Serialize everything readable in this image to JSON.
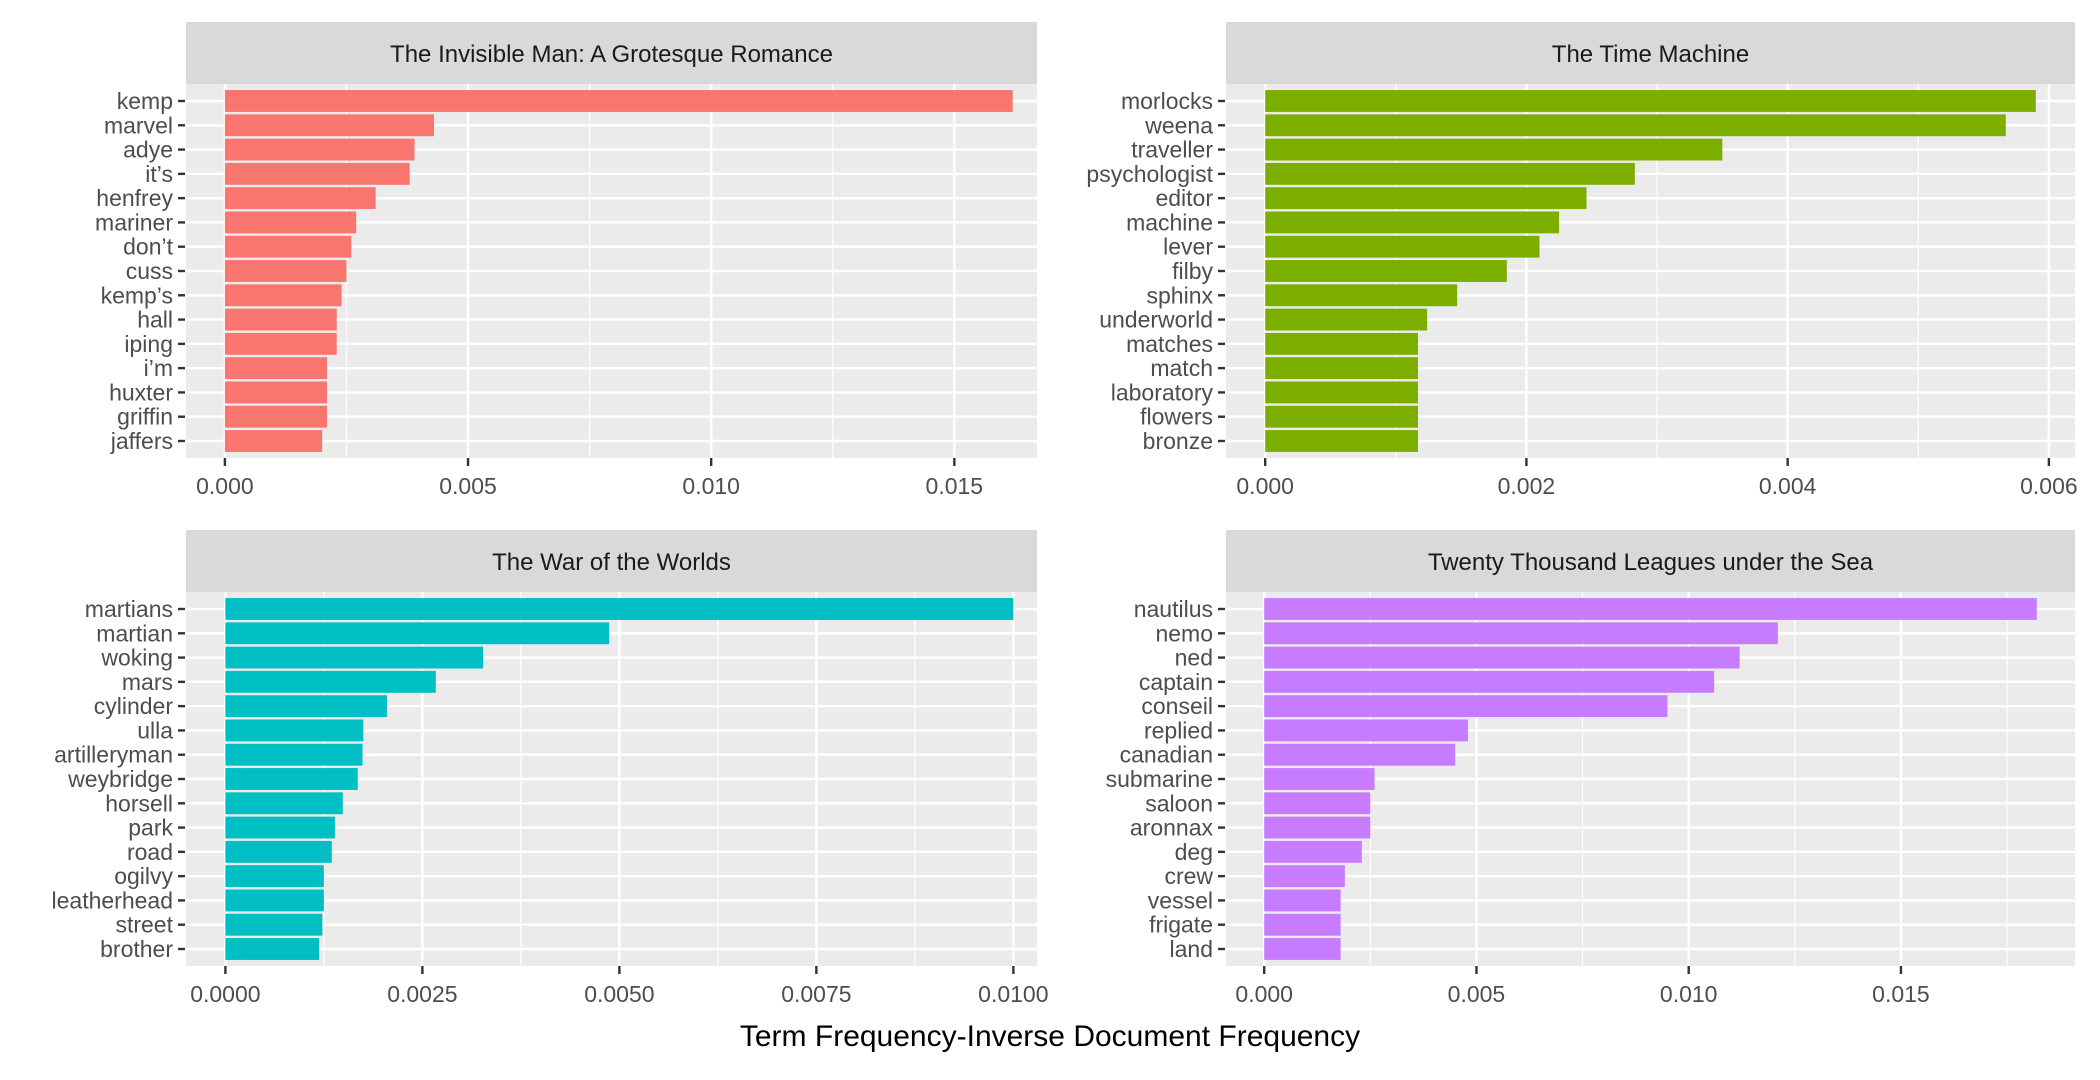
{
  "figure": {
    "xlabel": "Term Frequency-Inverse Document Frequency"
  },
  "chart_data": [
    {
      "type": "bar",
      "orientation": "horizontal",
      "title": "The Invisible Man: A Grotesque Romance",
      "color": "#F8766D",
      "xlim": [
        -0.0008,
        0.0167
      ],
      "ticks": [
        0,
        0.005,
        0.01,
        0.015
      ],
      "tick_labels": [
        "0.000",
        "0.005",
        "0.010",
        "0.015"
      ],
      "categories": [
        "kemp",
        "marvel",
        "adye",
        "it’s",
        "henfrey",
        "mariner",
        "don’t",
        "cuss",
        "kemp’s",
        "hall",
        "iping",
        "i’m",
        "huxter",
        "griffin",
        "jaffers"
      ],
      "values": [
        0.0162,
        0.0043,
        0.0039,
        0.0038,
        0.0031,
        0.0027,
        0.0026,
        0.0025,
        0.0024,
        0.0023,
        0.0023,
        0.0021,
        0.0021,
        0.0021,
        0.002
      ]
    },
    {
      "type": "bar",
      "orientation": "horizontal",
      "title": "The Time Machine",
      "color": "#7CAE00",
      "xlim": [
        -0.0003,
        0.0062
      ],
      "ticks": [
        0,
        0.002,
        0.004,
        0.006
      ],
      "tick_labels": [
        "0.000",
        "0.002",
        "0.004",
        "0.006"
      ],
      "categories": [
        "morlocks",
        "weena",
        "traveller",
        "psychologist",
        "editor",
        "machine",
        "lever",
        "filby",
        "sphinx",
        "underworld",
        "matches",
        "match",
        "laboratory",
        "flowers",
        "bronze"
      ],
      "values": [
        0.0059,
        0.00567,
        0.0035,
        0.00283,
        0.00246,
        0.00225,
        0.0021,
        0.00185,
        0.00147,
        0.00124,
        0.00117,
        0.00117,
        0.00117,
        0.00117,
        0.00117
      ]
    },
    {
      "type": "bar",
      "orientation": "horizontal",
      "title": "The War of the Worlds",
      "color": "#00BFC4",
      "xlim": [
        -0.0005,
        0.0103
      ],
      "ticks": [
        0,
        0.0025,
        0.005,
        0.0075,
        0.01
      ],
      "tick_labels": [
        "0.0000",
        "0.0025",
        "0.0050",
        "0.0075",
        "0.0100"
      ],
      "categories": [
        "martians",
        "martian",
        "woking",
        "mars",
        "cylinder",
        "ulla",
        "artilleryman",
        "weybridge",
        "horsell",
        "park",
        "road",
        "ogilvy",
        "leatherhead",
        "street",
        "brother"
      ],
      "values": [
        0.01,
        0.00487,
        0.00327,
        0.00267,
        0.00205,
        0.00175,
        0.00174,
        0.00168,
        0.00149,
        0.00139,
        0.00135,
        0.00125,
        0.00125,
        0.00123,
        0.00119
      ]
    },
    {
      "type": "bar",
      "orientation": "horizontal",
      "title": "Twenty Thousand Leagues under the Sea",
      "color": "#C77CFF",
      "xlim": [
        -0.0009,
        0.0191
      ],
      "ticks": [
        0,
        0.005,
        0.01,
        0.015
      ],
      "tick_labels": [
        "0.000",
        "0.005",
        "0.010",
        "0.015"
      ],
      "categories": [
        "nautilus",
        "nemo",
        "ned",
        "captain",
        "conseil",
        "replied",
        "canadian",
        "submarine",
        "saloon",
        "aronnax",
        "deg",
        "crew",
        "vessel",
        "frigate",
        "land"
      ],
      "values": [
        0.0182,
        0.0121,
        0.0112,
        0.0106,
        0.0095,
        0.0048,
        0.0045,
        0.0026,
        0.0025,
        0.0025,
        0.0023,
        0.0019,
        0.0018,
        0.0018,
        0.0018
      ]
    }
  ]
}
